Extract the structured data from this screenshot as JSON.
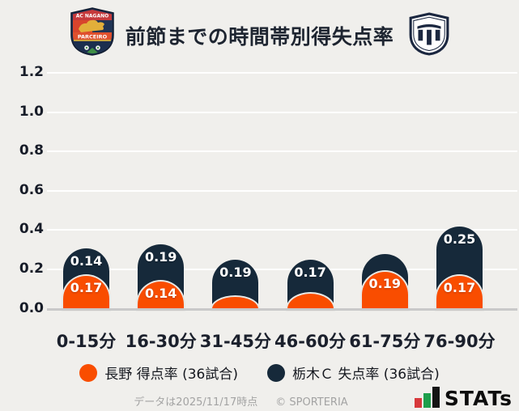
{
  "header": {
    "left_badge": {
      "line1": "AC NAGANO",
      "line2": "PARCEIRO"
    }
  },
  "chart_data": {
    "type": "bar",
    "stacked": true,
    "title": "前節までの時間帯別得失点率",
    "categories": [
      "0-15分",
      "16-30分",
      "31-45分",
      "46-60分",
      "61-75分",
      "76-90分"
    ],
    "series": [
      {
        "name": "長野 得点率 (36試合)",
        "color": "#f94d00",
        "position": "bottom",
        "values": [
          0.17,
          0.14,
          0.06,
          0.08,
          0.19,
          0.17
        ],
        "labels": [
          "0.17",
          "0.14",
          "",
          "",
          "0.19",
          "0.17"
        ]
      },
      {
        "name": "栃木Ｃ 失点率 (36試合)",
        "color": "#16293a",
        "position": "top",
        "values": [
          0.14,
          0.19,
          0.19,
          0.17,
          0.09,
          0.25
        ],
        "labels": [
          "0.14",
          "0.19",
          "0.19",
          "0.17",
          "",
          "0.25"
        ]
      }
    ],
    "yticks": [
      "1.2",
      "1.0",
      "0.8",
      "0.6",
      "0.4",
      "0.2",
      "0.0"
    ],
    "ylim": [
      0,
      1.2
    ],
    "grid": true,
    "legend_position": "bottom",
    "games_played": 36
  },
  "footer": {
    "note": "データは2025/11/17時点",
    "copyright": "© SPORTERIA",
    "brand": "STATs"
  }
}
